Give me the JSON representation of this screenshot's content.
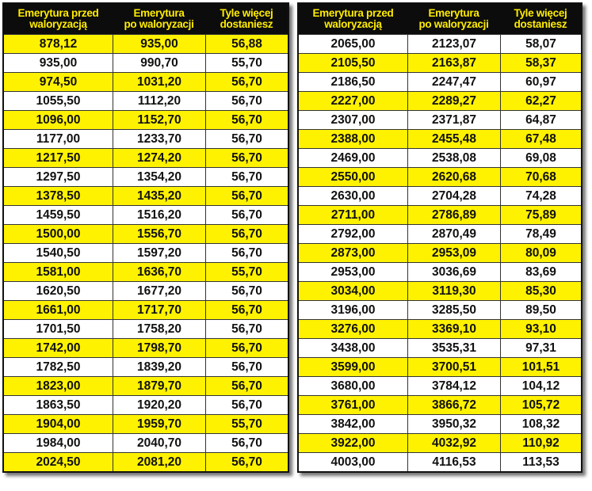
{
  "colors": {
    "highlight": "#fff200",
    "header_bg": "#0c0c0c",
    "header_text": "#ffec00"
  },
  "tables": [
    {
      "headers": [
        "Emerytura przed\nwaloryzacją",
        "Emerytura\npo waloryzacji",
        "Tyle więcej\ndostaniesz"
      ],
      "first_row_highlighted": true,
      "rows": [
        [
          "878,12",
          "935,00",
          "56,88"
        ],
        [
          "935,00",
          "990,70",
          "55,70"
        ],
        [
          "974,50",
          "1031,20",
          "56,70"
        ],
        [
          "1055,50",
          "1112,20",
          "56,70"
        ],
        [
          "1096,00",
          "1152,70",
          "56,70"
        ],
        [
          "1177,00",
          "1233,70",
          "56,70"
        ],
        [
          "1217,50",
          "1274,20",
          "56,70"
        ],
        [
          "1297,50",
          "1354,20",
          "56,70"
        ],
        [
          "1378,50",
          "1435,20",
          "56,70"
        ],
        [
          "1459,50",
          "1516,20",
          "56,70"
        ],
        [
          "1500,00",
          "1556,70",
          "56,70"
        ],
        [
          "1540,50",
          "1597,20",
          "56,70"
        ],
        [
          "1581,00",
          "1636,70",
          "55,70"
        ],
        [
          "1620,50",
          "1677,20",
          "56,70"
        ],
        [
          "1661,00",
          "1717,70",
          "56,70"
        ],
        [
          "1701,50",
          "1758,20",
          "56,70"
        ],
        [
          "1742,00",
          "1798,70",
          "56,70"
        ],
        [
          "1782,50",
          "1839,20",
          "56,70"
        ],
        [
          "1823,00",
          "1879,70",
          "56,70"
        ],
        [
          "1863,50",
          "1920,20",
          "56,70"
        ],
        [
          "1904,00",
          "1959,70",
          "55,70"
        ],
        [
          "1984,00",
          "2040,70",
          "56,70"
        ],
        [
          "2024,50",
          "2081,20",
          "56,70"
        ]
      ]
    },
    {
      "headers": [
        "Emerytura przed\nwaloryzacją",
        "Emerytura\npo waloryzacji",
        "Tyle więcej\ndostaniesz"
      ],
      "first_row_highlighted": false,
      "rows": [
        [
          "2065,00",
          "2123,07",
          "58,07"
        ],
        [
          "2105,50",
          "2163,87",
          "58,37"
        ],
        [
          "2186,50",
          "2247,47",
          "60,97"
        ],
        [
          "2227,00",
          "2289,27",
          "62,27"
        ],
        [
          "2307,00",
          "2371,87",
          "64,87"
        ],
        [
          "2388,00",
          "2455,48",
          "67,48"
        ],
        [
          "2469,00",
          "2538,08",
          "69,08"
        ],
        [
          "2550,00",
          "2620,68",
          "70,68"
        ],
        [
          "2630,00",
          "2704,28",
          "74,28"
        ],
        [
          "2711,00",
          "2786,89",
          "75,89"
        ],
        [
          "2792,00",
          "2870,49",
          "78,49"
        ],
        [
          "2873,00",
          "2953,09",
          "80,09"
        ],
        [
          "2953,00",
          "3036,69",
          "83,69"
        ],
        [
          "3034,00",
          "3119,30",
          "85,30"
        ],
        [
          "3196,00",
          "3285,50",
          "89,50"
        ],
        [
          "3276,00",
          "3369,10",
          "93,10"
        ],
        [
          "3438,00",
          "3535,31",
          "97,31"
        ],
        [
          "3599,00",
          "3700,51",
          "101,51"
        ],
        [
          "3680,00",
          "3784,12",
          "104,12"
        ],
        [
          "3761,00",
          "3866,72",
          "105,72"
        ],
        [
          "3842,00",
          "3950,32",
          "108,32"
        ],
        [
          "3922,00",
          "4032,92",
          "110,92"
        ],
        [
          "4003,00",
          "4116,53",
          "113,53"
        ]
      ]
    }
  ]
}
